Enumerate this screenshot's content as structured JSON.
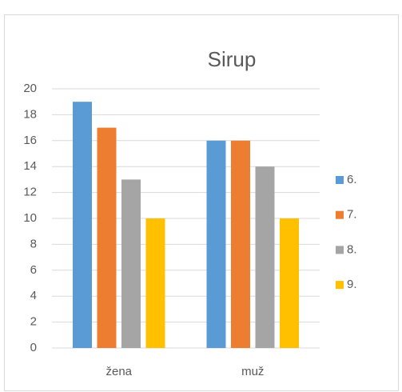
{
  "chart_data": {
    "type": "bar",
    "title": "Sirup",
    "categories": [
      "žena",
      "muž"
    ],
    "series": [
      {
        "name": "6.",
        "color": "#5b9bd5",
        "values": [
          19,
          16
        ]
      },
      {
        "name": "7.",
        "color": "#ed7d31",
        "values": [
          17,
          16
        ]
      },
      {
        "name": "8.",
        "color": "#a5a5a5",
        "values": [
          13,
          14
        ]
      },
      {
        "name": "9.",
        "color": "#ffc000",
        "values": [
          10,
          10
        ]
      }
    ],
    "ylim": [
      0,
      20
    ],
    "yticks": [
      0,
      2,
      4,
      6,
      8,
      10,
      12,
      14,
      16,
      18,
      20
    ],
    "grid": true,
    "legend": "right"
  }
}
